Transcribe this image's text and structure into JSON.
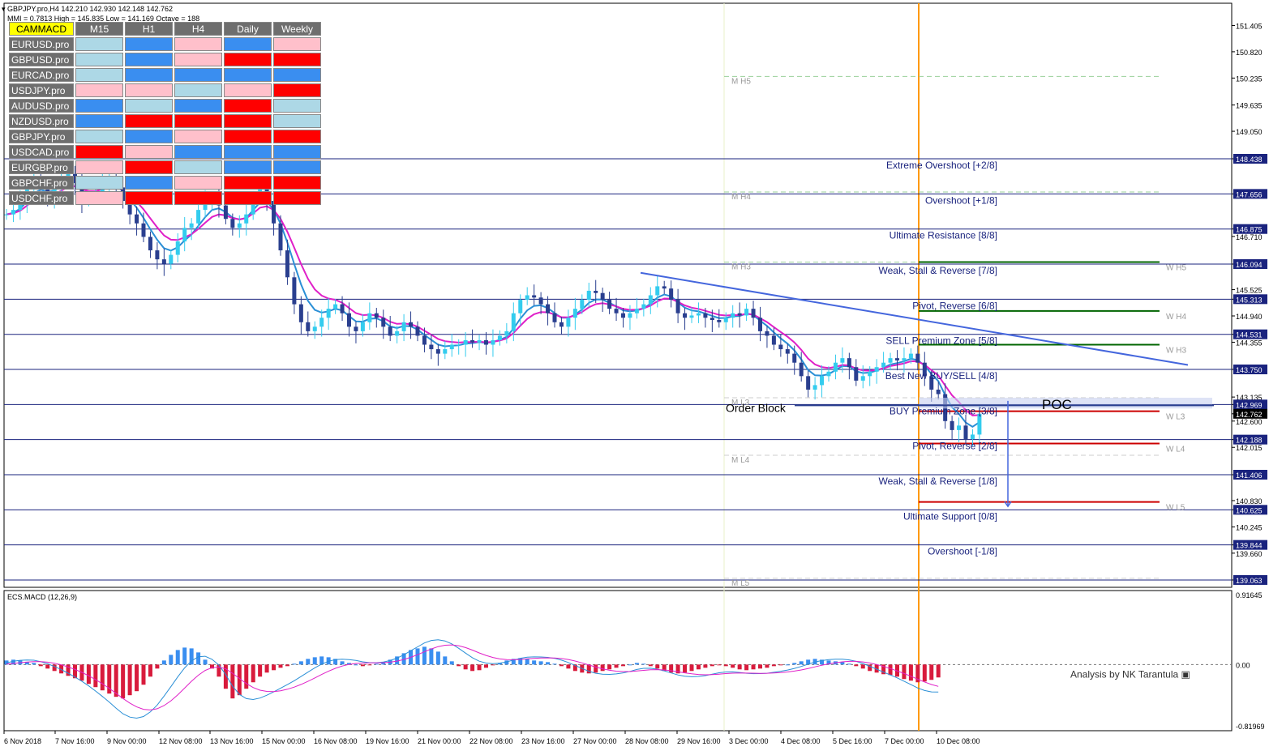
{
  "header": {
    "symbol_line": "GBPJPY.pro,H4  142.210 142.930 142.148 142.762",
    "info_line": "MMI = 0.7813  High = 145.835  Low = 141.169  Octave = 188"
  },
  "dashboard": {
    "title": "CAMMACD",
    "columns": [
      "M15",
      "H1",
      "H4",
      "Daily",
      "Weekly"
    ],
    "colors": {
      "R": "#ff0000",
      "B": "#3a8ef0",
      "P": "#ffc0cb",
      "L": "#add8e6"
    },
    "rows": [
      {
        "symbol": "EURUSD.pro",
        "cells": [
          "L",
          "B",
          "P",
          "B",
          "P"
        ]
      },
      {
        "symbol": "GBPUSD.pro",
        "cells": [
          "L",
          "B",
          "P",
          "R",
          "R"
        ]
      },
      {
        "symbol": "EURCAD.pro",
        "cells": [
          "L",
          "B",
          "B",
          "B",
          "B"
        ]
      },
      {
        "symbol": "USDJPY.pro",
        "cells": [
          "P",
          "P",
          "L",
          "P",
          "R"
        ]
      },
      {
        "symbol": "AUDUSD.pro",
        "cells": [
          "B",
          "L",
          "B",
          "R",
          "L"
        ]
      },
      {
        "symbol": "NZDUSD.pro",
        "cells": [
          "B",
          "R",
          "R",
          "R",
          "L"
        ]
      },
      {
        "symbol": "GBPJPY.pro",
        "cells": [
          "L",
          "B",
          "P",
          "R",
          "R"
        ]
      },
      {
        "symbol": "USDCAD.pro",
        "cells": [
          "R",
          "P",
          "B",
          "B",
          "B"
        ]
      },
      {
        "symbol": "EURGBP.pro",
        "cells": [
          "P",
          "R",
          "L",
          "B",
          "B"
        ]
      },
      {
        "symbol": "GBPCHF.pro",
        "cells": [
          "L",
          "B",
          "P",
          "R",
          "R"
        ]
      },
      {
        "symbol": "USDCHF.pro",
        "cells": [
          "P",
          "R",
          "R",
          "R",
          "R"
        ]
      }
    ]
  },
  "chart_data": [
    {
      "type": "candlestick",
      "symbol": "GBPJPY.pro",
      "timeframe": "H4",
      "ylim": [
        138.9,
        151.9
      ],
      "y_ticks": [
        151.405,
        150.82,
        150.235,
        149.635,
        149.05,
        148.438,
        147.656,
        146.875,
        146.71,
        146.094,
        145.525,
        145.313,
        144.94,
        144.531,
        144.355,
        143.75,
        143.135,
        142.969,
        142.762,
        142.6,
        142.188,
        142.015,
        141.406,
        140.83,
        140.625,
        140.245,
        139.844,
        139.66,
        139.063
      ],
      "highlighted_ticks": [
        "148.438",
        "147.656",
        "146.875",
        "146.094",
        "145.313",
        "144.531",
        "143.750",
        "142.969",
        "142.188",
        "141.406",
        "140.625",
        "139.844",
        "139.063"
      ],
      "current_price": "142.762",
      "x_labels": [
        "6 Nov 2018",
        "7 Nov 16:00",
        "9 Nov 00:00",
        "12 Nov 08:00",
        "13 Nov 16:00",
        "15 Nov 00:00",
        "16 Nov 08:00",
        "19 Nov 16:00",
        "21 Nov 00:00",
        "22 Nov 08:00",
        "23 Nov 16:00",
        "27 Nov 00:00",
        "28 Nov 08:00",
        "29 Nov 16:00",
        "3 Dec 00:00",
        "4 Dec 08:00",
        "5 Dec 16:00",
        "7 Dec 00:00",
        "10 Dec 08:00"
      ],
      "close_path": [
        147.2,
        147.3,
        147.5,
        147.8,
        148.0,
        147.9,
        147.6,
        147.8,
        148.0,
        148.1,
        147.9,
        147.5,
        147.6,
        147.7,
        147.9,
        148.0,
        147.8,
        147.5,
        147.2,
        147.0,
        146.7,
        146.4,
        146.2,
        146.1,
        146.3,
        146.6,
        146.9,
        147.0,
        147.3,
        147.5,
        147.6,
        147.4,
        147.1,
        146.9,
        147.0,
        147.2,
        147.6,
        147.8,
        147.5,
        147.0,
        146.4,
        145.8,
        145.2,
        144.8,
        144.6,
        144.7,
        144.9,
        145.1,
        145.2,
        145.0,
        144.7,
        144.6,
        144.8,
        145.0,
        144.9,
        144.7,
        144.5,
        144.6,
        144.8,
        144.7,
        144.5,
        144.3,
        144.2,
        144.1,
        144.2,
        144.3,
        144.3,
        144.4,
        144.35,
        144.4,
        144.3,
        144.4,
        144.5,
        144.6,
        145.0,
        145.3,
        145.4,
        145.35,
        145.2,
        145.0,
        144.8,
        144.7,
        144.9,
        145.1,
        145.3,
        145.5,
        145.45,
        145.3,
        145.1,
        145.0,
        144.9,
        145.0,
        145.1,
        145.2,
        145.4,
        145.6,
        145.55,
        145.3,
        145.0,
        144.9,
        144.95,
        145.0,
        144.9,
        144.85,
        144.8,
        144.9,
        145.0,
        144.95,
        145.1,
        144.9,
        144.6,
        144.5,
        144.3,
        144.2,
        144.1,
        143.9,
        143.6,
        143.3,
        143.4,
        143.6,
        143.7,
        143.9,
        144.0,
        143.8,
        143.5,
        143.6,
        143.7,
        143.8,
        143.9,
        144.0,
        143.95,
        144.0,
        144.1,
        143.9,
        143.6,
        143.3,
        143.2,
        142.6,
        142.4,
        142.5,
        142.2,
        142.3,
        142.762
      ]
    },
    {
      "type": "histogram",
      "title": "ECS.MACD (12,26,9)",
      "ylim": [
        -0.81969,
        0.91645
      ],
      "y_ticks": [
        "0.91645",
        "0.00",
        "-0.81969"
      ],
      "values": [
        0.05,
        0.06,
        0.05,
        0.03,
        0.02,
        -0.02,
        -0.05,
        -0.08,
        -0.11,
        -0.14,
        -0.17,
        -0.2,
        -0.24,
        -0.28,
        -0.32,
        -0.36,
        -0.4,
        -0.42,
        -0.38,
        -0.33,
        -0.25,
        -0.15,
        -0.05,
        0.05,
        0.12,
        0.18,
        0.21,
        0.2,
        0.15,
        0.06,
        -0.05,
        -0.15,
        -0.3,
        -0.42,
        -0.38,
        -0.3,
        -0.22,
        -0.15,
        -0.1,
        -0.07,
        -0.04,
        -0.02,
        0.01,
        0.04,
        0.07,
        0.09,
        0.1,
        0.09,
        0.07,
        0.04,
        0.02,
        0.0,
        -0.02,
        -0.01,
        0.01,
        0.03,
        0.06,
        0.1,
        0.14,
        0.18,
        0.2,
        0.22,
        0.2,
        0.16,
        0.1,
        0.04,
        -0.02,
        -0.06,
        -0.08,
        -0.07,
        -0.04,
        -0.01,
        0.02,
        0.05,
        0.07,
        0.08,
        0.07,
        0.05,
        0.04,
        0.03,
        0.01,
        -0.02,
        -0.05,
        -0.08,
        -0.1,
        -0.11,
        -0.1,
        -0.08,
        -0.06,
        -0.04,
        -0.02,
        0.0,
        0.02,
        0.01,
        -0.02,
        -0.05,
        -0.08,
        -0.1,
        -0.11,
        -0.1,
        -0.08,
        -0.06,
        -0.04,
        -0.02,
        -0.01,
        -0.02,
        -0.04,
        -0.06,
        -0.07,
        -0.06,
        -0.05,
        -0.04,
        -0.02,
        -0.01,
        0.0,
        0.02,
        0.04,
        0.06,
        0.07,
        0.06,
        0.05,
        0.04,
        0.03,
        0.01,
        -0.02,
        -0.05,
        -0.08,
        -0.1,
        -0.12,
        -0.13,
        -0.15,
        -0.18,
        -0.2,
        -0.22,
        -0.21,
        -0.19,
        -0.16
      ],
      "annotation": "Analysis by NK Tarantula"
    }
  ],
  "murrey_lines": [
    {
      "label": "Extreme Overshoot [+2/8]",
      "price": 148.438
    },
    {
      "label": "Overshoot [+1/8]",
      "price": 147.656
    },
    {
      "label": "Ultimate Resistance [8/8]",
      "price": 146.875
    },
    {
      "label": "Weak, Stall & Reverse [7/8]",
      "price": 146.094
    },
    {
      "label": "Pivot, Reverse [6/8]",
      "price": 145.313
    },
    {
      "label": "SELL Premium Zone [5/8]",
      "price": 144.531
    },
    {
      "label": "Best New BUY/SELL [4/8]",
      "price": 143.75
    },
    {
      "label": "BUY Premium Zone [3/8]",
      "price": 142.969
    },
    {
      "label": "Pivot, Reverse [2/8]",
      "price": 142.188
    },
    {
      "label": "Weak, Stall & Reverse [1/8]",
      "price": 141.406
    },
    {
      "label": "Ultimate Support [0/8]",
      "price": 140.625
    },
    {
      "label": "Overshoot [-1/8]",
      "price": 139.844
    },
    {
      "label": "",
      "price": 139.063
    }
  ],
  "monthly_levels": [
    {
      "label": "M H5",
      "price": 150.27
    },
    {
      "label": "M H4",
      "price": 147.7
    },
    {
      "label": "M H3",
      "price": 146.14
    },
    {
      "label": "M L3",
      "price": 143.12
    },
    {
      "label": "M L4",
      "price": 141.84
    },
    {
      "label": "M L5",
      "price": 139.1
    }
  ],
  "weekly_levels": [
    {
      "label": "W H5",
      "price": 146.14,
      "color": "#006400"
    },
    {
      "label": "W H4",
      "price": 145.05,
      "color": "#006400"
    },
    {
      "label": "W H3",
      "price": 144.3,
      "color": "#006400"
    },
    {
      "label": "W L3",
      "price": 142.82,
      "color": "#cc0000"
    },
    {
      "label": "W L4",
      "price": 142.1,
      "color": "#cc0000"
    },
    {
      "label": "W L5",
      "price": 140.8,
      "color": "#cc0000"
    }
  ],
  "annotations": {
    "order_block": "Order Block",
    "poc": "POC"
  }
}
